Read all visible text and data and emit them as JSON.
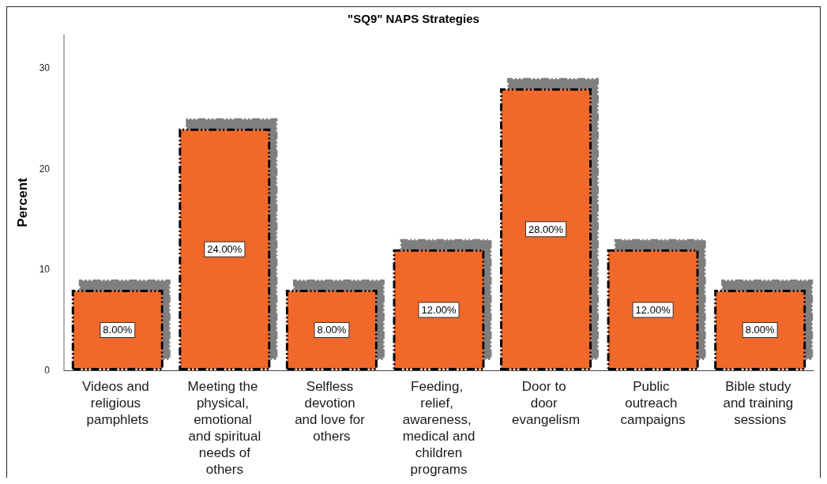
{
  "chart_data": {
    "type": "bar",
    "title": "\"SQ9\" NAPS Strategies",
    "ylabel": "Percent",
    "categories": [
      "Videos and religious pamphlets",
      "Meeting the physical, emotional and spiritual needs of others",
      "Selfless devotion and love for others",
      "Feeding, relief, awareness, medical and children programs",
      "Door to door evangelism",
      "Public outreach campaigns",
      "Bible study and training sessions"
    ],
    "values": [
      8,
      24,
      8,
      12,
      28,
      12,
      8
    ],
    "value_labels": [
      "8.00%",
      "24.00%",
      "8.00%",
      "12.00%",
      "28.00%",
      "12.00%",
      "8.00%"
    ],
    "color": "#f1692c",
    "ylim": [
      0,
      33.3
    ],
    "yticks": [
      0,
      10,
      20,
      30
    ]
  }
}
